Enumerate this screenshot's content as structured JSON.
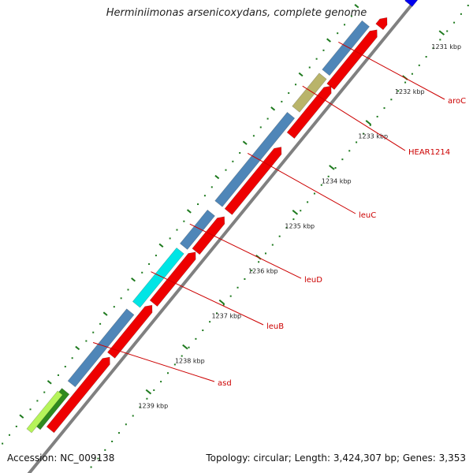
{
  "title": "Herminiimonas arsenicoxydans, complete genome",
  "footer": {
    "accession": "Accession: NC_009138",
    "topology": "Topology: circular; Length: 3,424,307 bp; Genes: 3,353"
  },
  "ticks": [
    {
      "label": "1231 kbp",
      "faded": true
    },
    {
      "label": "1232 kbp"
    },
    {
      "label": "1233 kbp"
    },
    {
      "label": "1234 kbp"
    },
    {
      "label": "1235 kbp"
    },
    {
      "label": "1236 kbp"
    },
    {
      "label": "1237 kbp"
    },
    {
      "label": "1238 kbp"
    },
    {
      "label": "1239 kbp"
    }
  ],
  "gene_labels": [
    {
      "text": "aroC"
    },
    {
      "text": "HEAR1214"
    },
    {
      "text": "leuC"
    },
    {
      "text": "leuD"
    },
    {
      "text": "leuB"
    },
    {
      "text": "asd"
    }
  ],
  "colors": {
    "backbone": "#808080",
    "forward_feature": "#ee0000",
    "reverse_cds": "#4f86b8",
    "hypothetical": "#b9b46a",
    "highlight": "#00e5e5",
    "green_feature": "#2f8a1f",
    "lime_feature": "#b6f45a",
    "blue_top": "#0000ee",
    "label_red": "#cc0000",
    "tick_green": "#1e7a1e"
  }
}
